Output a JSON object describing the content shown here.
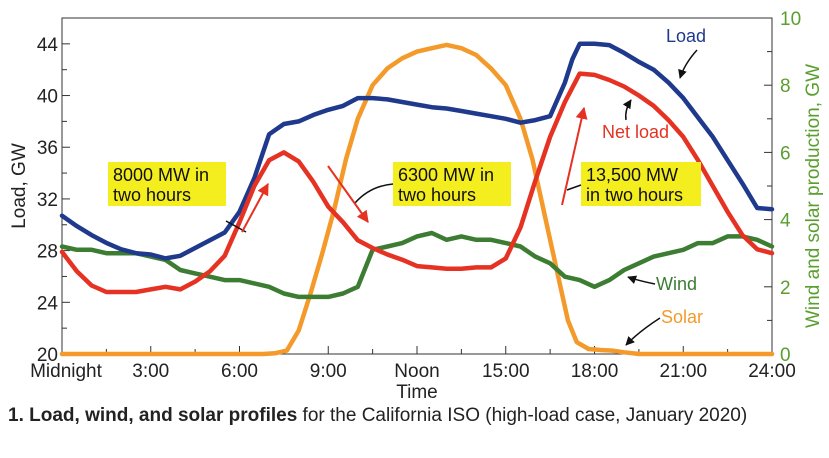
{
  "chart_data": {
    "type": "line",
    "xlabel": "Time",
    "ylabel_left": "Load, GW",
    "ylabel_right": "Wind and solar production, GW",
    "x_ticks": [
      {
        "x": 0,
        "label": "Midnight"
      },
      {
        "x": 3,
        "label": "3:00"
      },
      {
        "x": 6,
        "label": "6:00"
      },
      {
        "x": 9,
        "label": "9:00"
      },
      {
        "x": 12,
        "label": "Noon"
      },
      {
        "x": 15,
        "label": "15:00"
      },
      {
        "x": 18,
        "label": "18:00"
      },
      {
        "x": 21,
        "label": "21:00"
      },
      {
        "x": 24,
        "label": "24:00"
      }
    ],
    "xlim": [
      0,
      24
    ],
    "ylim_left": [
      20,
      46
    ],
    "ylim_right": [
      0,
      10
    ],
    "y_ticks_left": [
      20,
      24,
      28,
      32,
      36,
      40,
      44
    ],
    "y_ticks_right": [
      0,
      2,
      4,
      6,
      8,
      10
    ],
    "grid": false,
    "colors": {
      "load": "#1f3a8c",
      "net_load": "#e53222",
      "wind": "#3d7d33",
      "solar": "#f39a2b",
      "axis_left": "#222222",
      "axis_right": "#5a9e2f",
      "annotation_bg": "#f5ee1e",
      "arrow": "#e53222"
    },
    "series": [
      {
        "name": "Load",
        "key": "load",
        "axis": "left",
        "color": "#1f3a8c",
        "x": [
          0,
          0.5,
          1,
          1.5,
          2,
          2.5,
          3,
          3.5,
          4,
          4.5,
          5,
          5.5,
          6,
          6.5,
          7,
          7.5,
          8,
          8.5,
          9,
          9.5,
          10,
          10.5,
          11,
          11.5,
          12,
          12.5,
          13,
          13.5,
          14,
          14.5,
          15,
          15.5,
          16,
          16.5,
          17,
          17.25,
          17.5,
          18,
          18.5,
          19,
          19.5,
          20,
          20.5,
          21,
          21.5,
          22,
          22.5,
          23,
          23.5,
          24
        ],
        "y": [
          30.7,
          29.9,
          29.2,
          28.6,
          28.1,
          27.8,
          27.7,
          27.4,
          27.6,
          28.2,
          28.8,
          29.4,
          31.0,
          33.6,
          37.0,
          37.8,
          38.0,
          38.5,
          38.9,
          39.2,
          39.8,
          39.8,
          39.7,
          39.5,
          39.3,
          39.1,
          39.0,
          38.8,
          38.6,
          38.4,
          38.2,
          37.9,
          38.1,
          38.4,
          41.0,
          42.8,
          44.0,
          44.0,
          43.9,
          43.3,
          42.6,
          42.0,
          41.0,
          39.8,
          38.3,
          36.8,
          35.0,
          33.2,
          31.3,
          31.2
        ]
      },
      {
        "name": "Net load",
        "key": "net_load",
        "axis": "left",
        "color": "#e53222",
        "x": [
          0,
          0.5,
          1,
          1.5,
          2,
          2.5,
          3,
          3.5,
          4,
          4.5,
          5,
          5.5,
          6,
          6.5,
          7,
          7.5,
          8,
          8.5,
          9,
          9.5,
          10,
          10.5,
          11,
          11.5,
          12,
          12.5,
          13,
          13.5,
          14,
          14.5,
          15,
          15.5,
          16,
          16.5,
          17,
          17.5,
          18,
          18.5,
          19,
          19.5,
          20,
          20.5,
          21,
          21.5,
          22,
          22.5,
          23,
          23.5,
          24
        ],
        "y": [
          27.9,
          26.4,
          25.3,
          24.8,
          24.8,
          24.8,
          25.0,
          25.2,
          25.0,
          25.6,
          26.4,
          27.6,
          30.2,
          33.0,
          35.0,
          35.6,
          34.9,
          33.3,
          31.4,
          30.2,
          28.8,
          28.2,
          27.7,
          27.3,
          26.8,
          26.7,
          26.6,
          26.6,
          26.7,
          26.7,
          27.4,
          29.8,
          33.4,
          36.8,
          39.5,
          41.7,
          41.6,
          41.2,
          40.7,
          40.0,
          39.2,
          38.1,
          36.8,
          35.0,
          33.0,
          31.0,
          29.2,
          28.1,
          27.8
        ]
      },
      {
        "name": "Wind",
        "key": "wind",
        "axis": "right",
        "color": "#3d7d33",
        "x": [
          0,
          0.5,
          1,
          1.5,
          2,
          2.5,
          3,
          3.5,
          4,
          4.5,
          5,
          5.5,
          6,
          6.5,
          7,
          7.5,
          8,
          8.5,
          9,
          9.5,
          10,
          10.5,
          11,
          11.5,
          12,
          12.5,
          13,
          13.5,
          14,
          14.5,
          15,
          15.5,
          16,
          16.5,
          17,
          17.5,
          18,
          18.5,
          19,
          19.5,
          20,
          20.5,
          21,
          21.5,
          22,
          22.5,
          23,
          23.5,
          24
        ],
        "y": [
          3.2,
          3.1,
          3.1,
          3.0,
          3.0,
          3.0,
          2.9,
          2.8,
          2.5,
          2.4,
          2.3,
          2.2,
          2.2,
          2.1,
          2.0,
          1.8,
          1.7,
          1.7,
          1.7,
          1.8,
          2.0,
          3.1,
          3.2,
          3.3,
          3.5,
          3.6,
          3.4,
          3.5,
          3.4,
          3.4,
          3.3,
          3.2,
          2.9,
          2.7,
          2.3,
          2.2,
          2.0,
          2.2,
          2.5,
          2.7,
          2.9,
          3.0,
          3.1,
          3.3,
          3.3,
          3.5,
          3.5,
          3.4,
          3.2
        ]
      },
      {
        "name": "Solar",
        "key": "solar",
        "axis": "right",
        "color": "#f39a2b",
        "x": [
          0,
          6.8,
          7.2,
          7.6,
          8.0,
          8.4,
          8.8,
          9.2,
          9.6,
          10,
          10.5,
          11,
          11.5,
          12,
          12.5,
          13,
          13.5,
          14,
          14.5,
          15,
          15.5,
          15.9,
          16.3,
          16.7,
          17.1,
          17.4,
          17.8,
          18.2,
          18.6,
          19,
          19.5,
          24
        ],
        "y": [
          0,
          0,
          0.02,
          0.1,
          0.7,
          1.8,
          3.0,
          4.3,
          5.8,
          7.0,
          8.0,
          8.5,
          8.8,
          9.0,
          9.1,
          9.2,
          9.1,
          8.9,
          8.5,
          8.0,
          7.0,
          5.8,
          4.2,
          2.6,
          1.0,
          0.35,
          0.15,
          0.12,
          0.1,
          0.05,
          0,
          0
        ]
      }
    ],
    "series_labels": [
      {
        "text": "Load",
        "key": "load"
      },
      {
        "text": "Net load",
        "key": "net_load"
      },
      {
        "text": "Wind",
        "key": "wind"
      },
      {
        "text": "Solar",
        "key": "solar"
      }
    ],
    "annotations": [
      {
        "line1": "8000 MW in",
        "line2": "two hours"
      },
      {
        "line1": "6300 MW in",
        "line2": "two hours"
      },
      {
        "line1": "13,500 MW",
        "line2": "in two hours"
      }
    ]
  },
  "caption": {
    "bold": "1. Load, wind, and solar profiles",
    "rest": " for the California ISO (high-load case, January 2020)"
  }
}
